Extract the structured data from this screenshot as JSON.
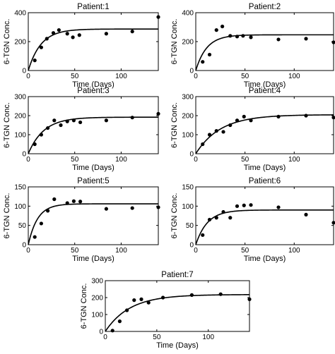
{
  "chart_data": [
    {
      "type": "scatter",
      "title": "Patient:1",
      "xlabel": "Time (Days)",
      "ylabel": "6-TGN Conc.",
      "xlim": [
        0,
        140
      ],
      "ylim": [
        0,
        400
      ],
      "xticks": [
        0,
        50,
        100
      ],
      "yticks": [
        0,
        200,
        400
      ],
      "grid": false,
      "points": {
        "x": [
          7,
          14,
          20,
          27,
          33,
          42,
          48,
          55,
          84,
          112,
          140
        ],
        "y": [
          70,
          160,
          220,
          260,
          280,
          255,
          230,
          245,
          255,
          270,
          370
        ]
      },
      "fit": {
        "plateau": 287,
        "rate": 0.073
      }
    },
    {
      "type": "scatter",
      "title": "Patient:2",
      "xlabel": "Time (Days)",
      "ylabel": "6-TGN Conc.",
      "xlim": [
        0,
        140
      ],
      "ylim": [
        0,
        400
      ],
      "xticks": [
        0,
        50,
        100
      ],
      "yticks": [
        0,
        200,
        400
      ],
      "grid": false,
      "points": {
        "x": [
          7,
          14,
          21,
          27,
          35,
          42,
          48,
          56,
          84,
          112,
          140
        ],
        "y": [
          60,
          110,
          280,
          305,
          240,
          235,
          240,
          230,
          215,
          220,
          195
        ]
      },
      "fit": {
        "plateau": 247,
        "rate": 0.09
      }
    },
    {
      "type": "scatter",
      "title": "Patient:3",
      "xlabel": "Time (Days)",
      "ylabel": "6-TGN Conc.",
      "xlim": [
        0,
        140
      ],
      "ylim": [
        0,
        300
      ],
      "xticks": [
        0,
        50,
        100
      ],
      "yticks": [
        0,
        100,
        200,
        300
      ],
      "grid": false,
      "points": {
        "x": [
          7,
          14,
          21,
          28,
          35,
          42,
          49,
          56,
          84,
          112,
          140
        ],
        "y": [
          50,
          100,
          135,
          175,
          150,
          170,
          175,
          165,
          175,
          190,
          210
        ]
      },
      "fit": {
        "plateau": 192,
        "rate": 0.06
      }
    },
    {
      "type": "scatter",
      "title": "Patient:4",
      "xlabel": "Time (Days)",
      "ylabel": "6-TGN Conc.",
      "xlim": [
        0,
        140
      ],
      "ylim": [
        0,
        300
      ],
      "xticks": [
        0,
        50,
        100
      ],
      "yticks": [
        0,
        100,
        200,
        300
      ],
      "grid": false,
      "points": {
        "x": [
          7,
          14,
          21,
          28,
          35,
          42,
          49,
          56,
          84,
          112,
          140
        ],
        "y": [
          50,
          100,
          120,
          115,
          150,
          175,
          195,
          175,
          195,
          200,
          190
        ]
      },
      "fit": {
        "plateau": 205,
        "rate": 0.04
      }
    },
    {
      "type": "scatter",
      "title": "Patient:5",
      "xlabel": "Time (Days)",
      "ylabel": "6-TGN Conc.",
      "xlim": [
        0,
        140
      ],
      "ylim": [
        0,
        150
      ],
      "xticks": [
        0,
        50,
        100
      ],
      "yticks": [
        0,
        50,
        100,
        150
      ],
      "grid": false,
      "points": {
        "x": [
          7,
          14,
          21,
          28,
          42,
          49,
          56,
          84,
          112,
          140
        ],
        "y": [
          20,
          55,
          88,
          118,
          108,
          113,
          112,
          93,
          95,
          97
        ]
      },
      "fit": {
        "plateau": 106,
        "rate": 0.1
      }
    },
    {
      "type": "scatter",
      "title": "Patient:6",
      "xlabel": "Time (Days)",
      "ylabel": "6-TGN Conc.",
      "xlim": [
        0,
        140
      ],
      "ylim": [
        0,
        150
      ],
      "xticks": [
        0,
        50,
        100
      ],
      "yticks": [
        0,
        50,
        100,
        150
      ],
      "grid": false,
      "points": {
        "x": [
          7,
          14,
          21,
          28,
          35,
          42,
          49,
          56,
          84,
          112,
          140
        ],
        "y": [
          25,
          65,
          70,
          85,
          70,
          100,
          102,
          103,
          97,
          78,
          57
        ]
      },
      "fit": {
        "plateau": 90,
        "rate": 0.085
      }
    },
    {
      "type": "scatter",
      "title": "Patient:7",
      "xlabel": "Time (Days)",
      "ylabel": "6-TGN Conc.",
      "xlim": [
        0,
        140
      ],
      "ylim": [
        0,
        300
      ],
      "xticks": [
        0,
        50,
        100
      ],
      "yticks": [
        0,
        100,
        200,
        300
      ],
      "grid": false,
      "points": {
        "x": [
          7,
          14,
          21,
          28,
          35,
          42,
          56,
          84,
          112,
          140
        ],
        "y": [
          5,
          60,
          125,
          185,
          190,
          170,
          200,
          215,
          220,
          190
        ]
      },
      "fit": {
        "plateau": 218,
        "rate": 0.042
      }
    }
  ]
}
